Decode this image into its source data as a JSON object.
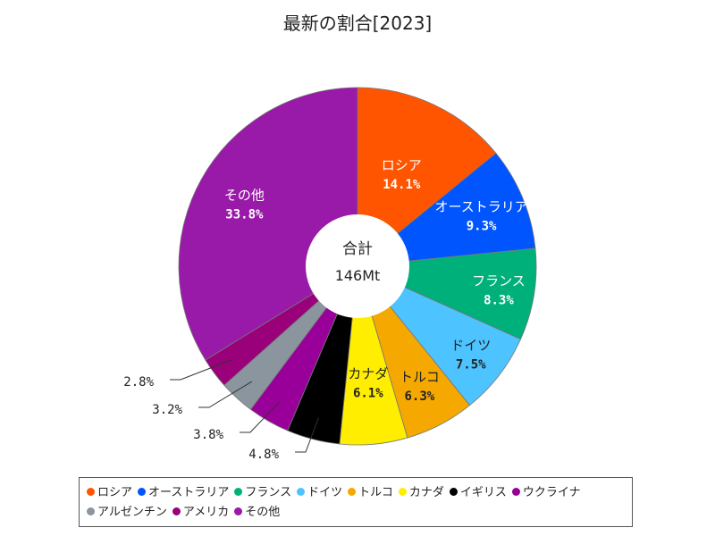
{
  "chart_data": {
    "type": "pie",
    "title": "最新の割合[2023]",
    "center": {
      "line1": "合計",
      "line2": "146Mt"
    },
    "slices": [
      {
        "name": "ロシア",
        "value": 14.1,
        "label": "14.1%",
        "color": "#ff5500"
      },
      {
        "name": "オーストラリア",
        "value": 9.3,
        "label": "9.3%",
        "color": "#0055ff"
      },
      {
        "name": "フランス",
        "value": 8.3,
        "label": "8.3%",
        "color": "#00b07a"
      },
      {
        "name": "ドイツ",
        "value": 7.5,
        "label": "7.5%",
        "color": "#4dc3ff"
      },
      {
        "name": "トルコ",
        "value": 6.3,
        "label": "6.3%",
        "color": "#f5a800"
      },
      {
        "name": "カナダ",
        "value": 6.1,
        "label": "6.1%",
        "color": "#ffee00"
      },
      {
        "name": "イギリス",
        "value": 4.8,
        "label": "4.8%",
        "color": "#000000"
      },
      {
        "name": "ウクライナ",
        "value": 3.8,
        "label": "3.8%",
        "color": "#990099"
      },
      {
        "name": "アルゼンチン",
        "value": 3.2,
        "label": "3.2%",
        "color": "#8a959e"
      },
      {
        "name": "アメリカ",
        "value": 2.8,
        "label": "2.8%",
        "color": "#99007a"
      },
      {
        "name": "その他",
        "value": 33.8,
        "label": "33.8%",
        "color": "#991aa8"
      }
    ]
  }
}
